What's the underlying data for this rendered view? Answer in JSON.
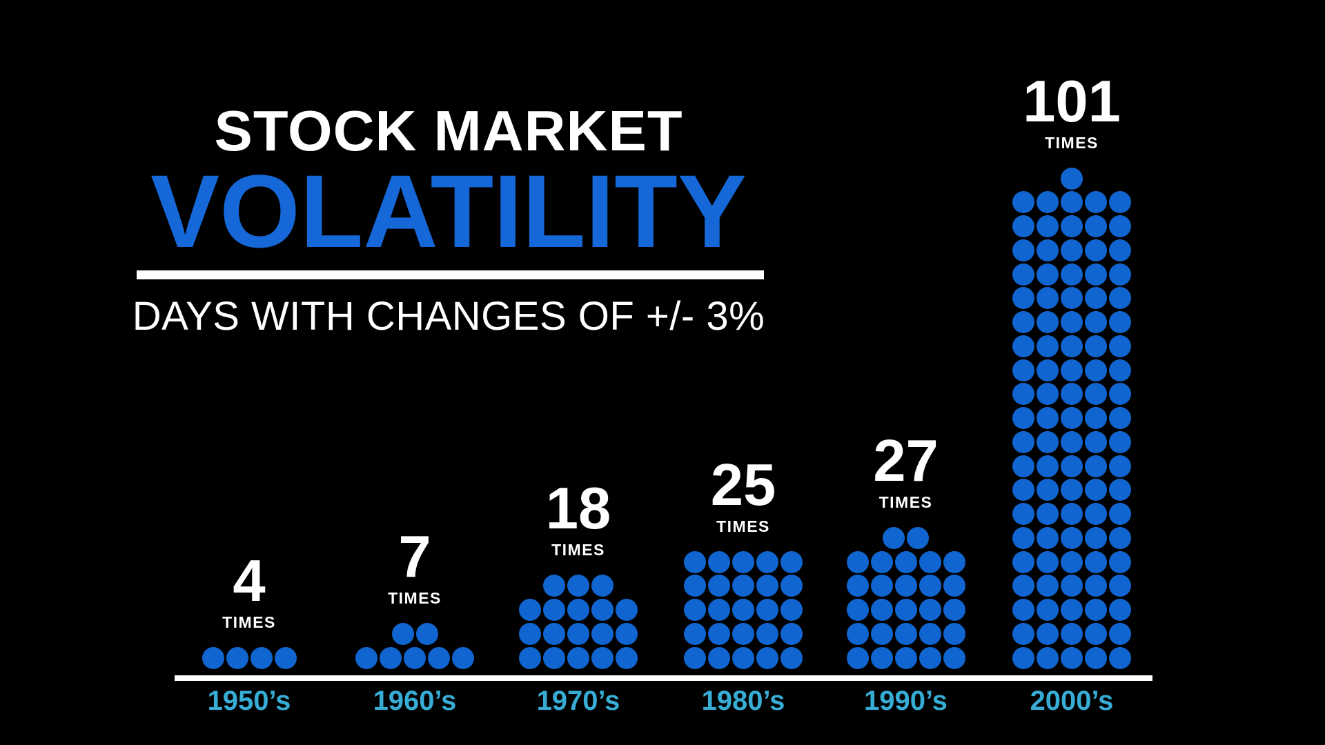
{
  "header": {
    "title_line1": "STOCK MARKET",
    "title_line2": "VOLATILITY",
    "subtitle": "DAYS WITH CHANGES OF +/- 3%"
  },
  "chart_data": {
    "type": "bar",
    "style": "dot-pictogram",
    "title": "STOCK MARKET VOLATILITY",
    "subtitle": "DAYS WITH CHANGES OF +/- 3%",
    "unit_label": "TIMES",
    "unit_per_dot": 1,
    "dots_per_row": 5,
    "categories": [
      "1950’s",
      "1960’s",
      "1970’s",
      "1980’s",
      "1990’s",
      "2000’s"
    ],
    "values": [
      4,
      7,
      18,
      25,
      27,
      101
    ],
    "value_labels": [
      "4 TIMES",
      "7 TIMES",
      "18 TIMES",
      "25 TIMES",
      "27 TIMES",
      "101 TIMES"
    ],
    "xlabel": "",
    "ylabel": "",
    "legend": "none",
    "grid": "off"
  },
  "colors": {
    "background": "#000000",
    "title_blue": "#1668d9",
    "dot_blue": "#1065d0",
    "decade_teal": "#37add5",
    "text_white": "#ffffff"
  }
}
